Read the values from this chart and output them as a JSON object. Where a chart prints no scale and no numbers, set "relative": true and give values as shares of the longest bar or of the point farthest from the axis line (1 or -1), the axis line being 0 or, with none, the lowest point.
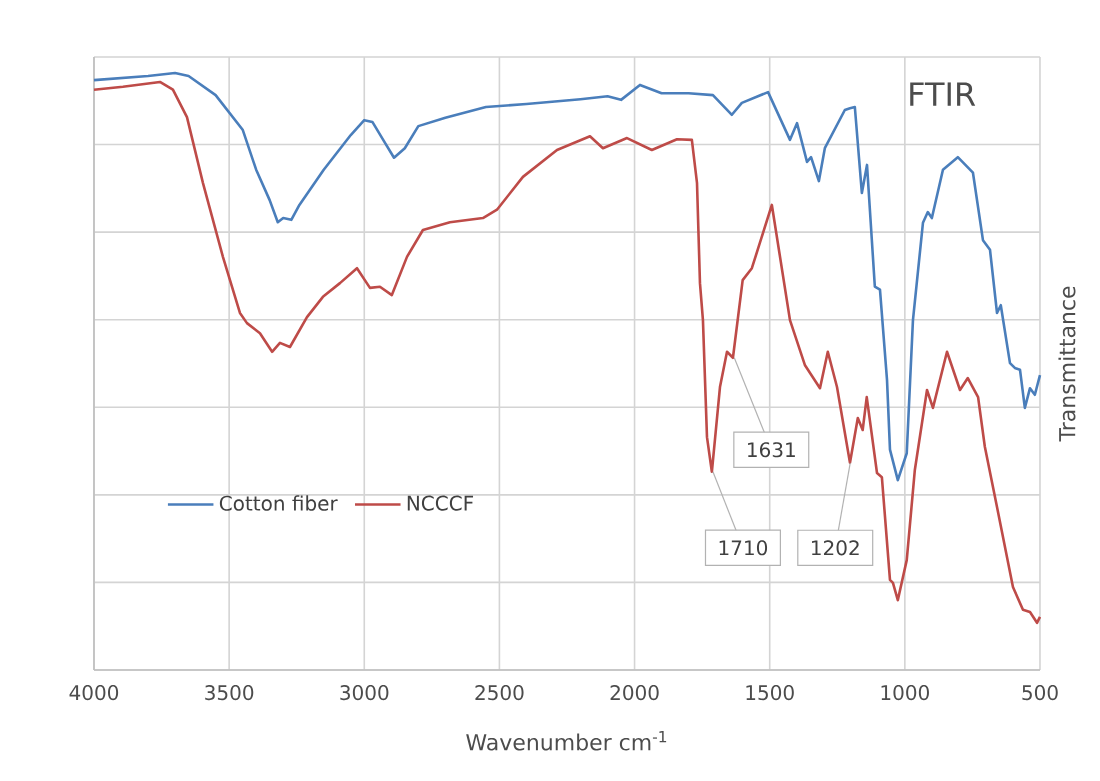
{
  "chart_data": {
    "type": "line",
    "title": "FTIR",
    "xlabel": "Wavenumber cm$^{-1}$",
    "ylabel": "Transmittance",
    "relative": true,
    "xlim": [
      4000,
      500
    ],
    "xticks": [
      4000,
      3500,
      3000,
      2500,
      2000,
      1500,
      1000,
      500
    ],
    "grid": true,
    "legend": "bottom left",
    "marker": "none",
    "line_style": "solid",
    "annotations": [
      {
        "text": "1710",
        "x": 1710,
        "y": 0.332
      },
      {
        "text": "1631",
        "x": 1631,
        "y": 0.523
      },
      {
        "text": "1202",
        "x": 1202,
        "y": 0.347
      }
    ],
    "series": [
      {
        "name": "Cotton fiber",
        "color": "#4a7ebb",
        "x": [
          4000,
          3800,
          3700,
          3650,
          3550,
          3450,
          3400,
          3350,
          3320,
          3300,
          3270,
          3240,
          3150,
          3050,
          3000,
          2970,
          2930,
          2890,
          2850,
          2800,
          2700,
          2550,
          2400,
          2200,
          2100,
          2050,
          1980,
          1900,
          1800,
          1710,
          1640,
          1603,
          1506,
          1425,
          1399,
          1362,
          1347,
          1318,
          1296,
          1222,
          1203,
          1185,
          1159,
          1140,
          1111,
          1092,
          1066,
          1055,
          1026,
          993,
          970,
          933,
          915,
          900,
          859,
          804,
          748,
          711,
          685,
          659,
          645,
          611,
          593,
          574,
          556,
          537,
          519,
          500
        ],
        "values": [
          0.988,
          0.995,
          1.0,
          0.995,
          0.963,
          0.905,
          0.838,
          0.787,
          0.75,
          0.757,
          0.754,
          0.779,
          0.838,
          0.896,
          0.921,
          0.918,
          0.888,
          0.858,
          0.874,
          0.911,
          0.925,
          0.943,
          0.948,
          0.956,
          0.961,
          0.955,
          0.98,
          0.966,
          0.966,
          0.963,
          0.93,
          0.95,
          0.968,
          0.888,
          0.916,
          0.851,
          0.859,
          0.819,
          0.874,
          0.938,
          0.941,
          0.943,
          0.799,
          0.846,
          0.642,
          0.637,
          0.486,
          0.369,
          0.318,
          0.363,
          0.586,
          0.749,
          0.767,
          0.757,
          0.838,
          0.859,
          0.833,
          0.72,
          0.704,
          0.598,
          0.611,
          0.514,
          0.506,
          0.503,
          0.439,
          0.472,
          0.461,
          0.494
        ]
      },
      {
        "name": "NCCCF",
        "color": "#be4b48",
        "x": [
          4000,
          3893,
          3756,
          3708,
          3656,
          3597,
          3523,
          3460,
          3434,
          3386,
          3341,
          3312,
          3275,
          3212,
          3153,
          3090,
          3027,
          2979,
          2942,
          2898,
          2842,
          2783,
          2683,
          2561,
          2509,
          2413,
          2287,
          2165,
          2117,
          2028,
          1936,
          1843,
          1788,
          1769,
          1758,
          1747,
          1732,
          1714,
          1684,
          1658,
          1636,
          1600,
          1566,
          1492,
          1425,
          1370,
          1314,
          1285,
          1251,
          1203,
          1174,
          1156,
          1141,
          1103,
          1085,
          1055,
          1044,
          1026,
          993,
          963,
          918,
          896,
          844,
          796,
          767,
          729,
          704,
          659,
          600,
          563,
          537,
          511,
          500
        ],
        "values": [
          0.972,
          0.977,
          0.985,
          0.972,
          0.926,
          0.816,
          0.692,
          0.598,
          0.581,
          0.564,
          0.533,
          0.548,
          0.541,
          0.591,
          0.625,
          0.648,
          0.673,
          0.64,
          0.642,
          0.628,
          0.692,
          0.737,
          0.75,
          0.757,
          0.771,
          0.826,
          0.871,
          0.894,
          0.874,
          0.891,
          0.871,
          0.889,
          0.888,
          0.816,
          0.648,
          0.586,
          0.39,
          0.332,
          0.474,
          0.533,
          0.523,
          0.653,
          0.673,
          0.779,
          0.586,
          0.511,
          0.472,
          0.533,
          0.474,
          0.347,
          0.422,
          0.402,
          0.457,
          0.33,
          0.323,
          0.151,
          0.146,
          0.117,
          0.184,
          0.335,
          0.469,
          0.439,
          0.533,
          0.469,
          0.489,
          0.457,
          0.374,
          0.273,
          0.139,
          0.101,
          0.097,
          0.079,
          0.089
        ]
      }
    ]
  }
}
